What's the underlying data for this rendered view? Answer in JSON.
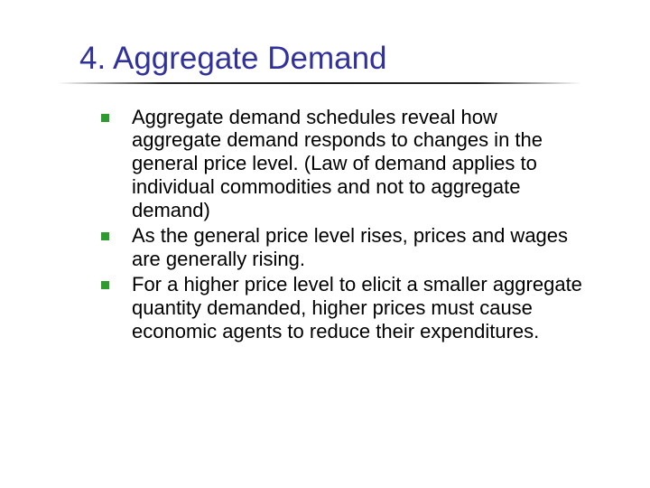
{
  "slide": {
    "title": "4. Aggregate Demand",
    "title_color": "#31319c",
    "title_font_family": "Verdana, Geneva, sans-serif",
    "title_fontsize": 35,
    "body_fontsize": 22,
    "body_color": "#000000",
    "bullet_color": "#2e9b2e",
    "bullet_size": 9,
    "rule_color": "#000000",
    "background_color": "#ffffff",
    "bullets": [
      "Aggregate demand schedules reveal how aggregate demand responds to changes in the general price level.  (Law of demand applies to individual commodities and not to aggregate demand)",
      "As the general price level rises, prices and wages are generally rising.",
      "For a higher price level to elicit a smaller aggregate quantity demanded, higher prices must cause economic agents to reduce their expenditures."
    ]
  }
}
